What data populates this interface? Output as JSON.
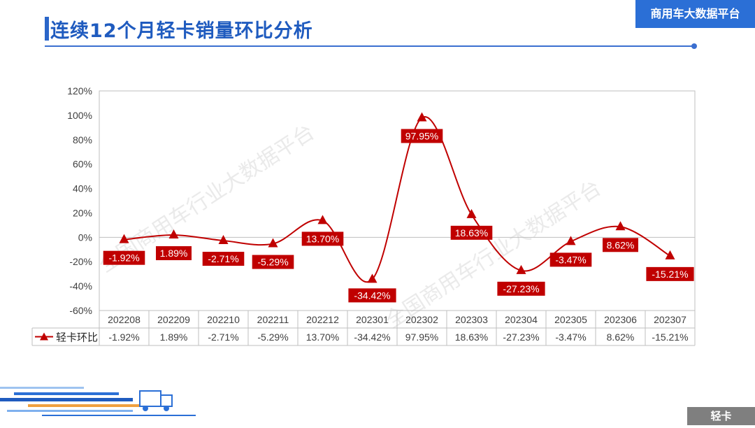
{
  "page": {
    "title": "连续12个月轻卡销量环比分析",
    "brand": "商用车大数据平台",
    "footer_tag": "轻卡",
    "watermark": "全国商用车行业大数据平台"
  },
  "colors": {
    "series": "#c00000",
    "label_bg": "#c00000",
    "title": "#1f5bbf",
    "brand_bg": "#2b6fd6"
  },
  "chart_data": {
    "type": "line",
    "smooth": true,
    "categories": [
      "202208",
      "202209",
      "202210",
      "202211",
      "202212",
      "202301",
      "202302",
      "202303",
      "202304",
      "202305",
      "202306",
      "202307"
    ],
    "series": [
      {
        "name": "轻卡环比",
        "values": [
          -1.92,
          1.89,
          -2.71,
          -5.29,
          13.7,
          -34.42,
          97.95,
          18.63,
          -27.23,
          -3.47,
          8.62,
          -15.21
        ],
        "labels": [
          "-1.92%",
          "1.89%",
          "-2.71%",
          "-5.29%",
          "13.70%",
          "-34.42%",
          "97.95%",
          "18.63%",
          "-27.23%",
          "-3.47%",
          "8.62%",
          "-15.21%"
        ],
        "marker": "triangle"
      }
    ],
    "y_ticks": [
      "120%",
      "100%",
      "80%",
      "60%",
      "40%",
      "20%",
      "0%",
      "-20%",
      "-40%",
      "-60%"
    ],
    "ylim": [
      -60,
      120
    ],
    "y_step": 20,
    "grid": false,
    "data_table": true,
    "legend": "data-table"
  }
}
